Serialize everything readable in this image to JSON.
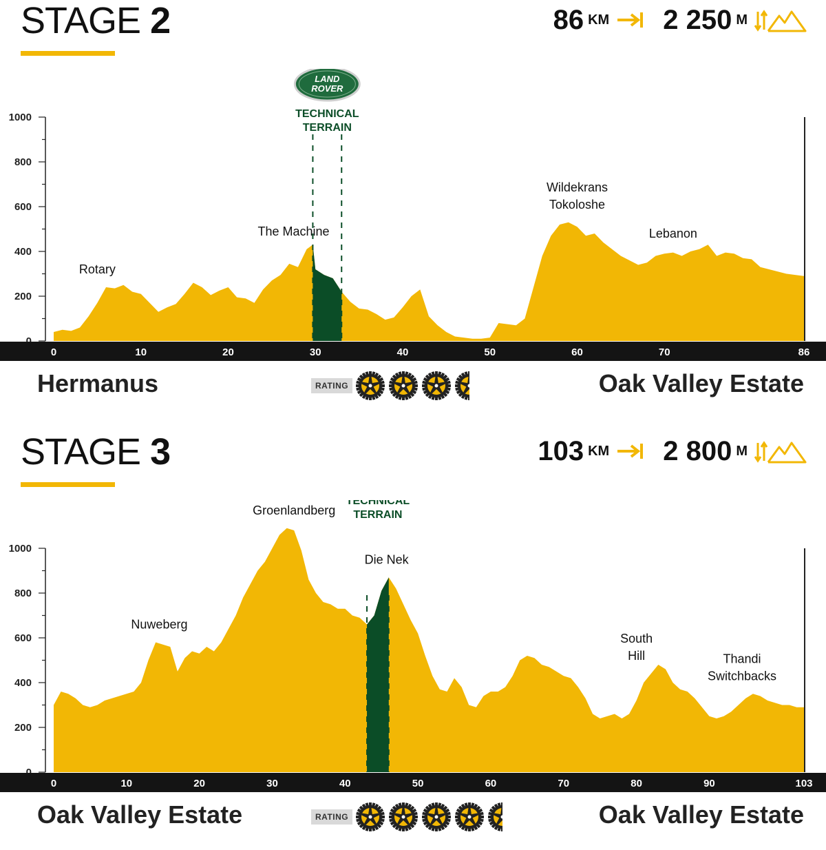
{
  "colors": {
    "accent": "#f2b705",
    "technical": "#0b4d27",
    "axis_bar": "#141414",
    "text": "#111111"
  },
  "icons": {
    "distance": "arrow-to-line-icon",
    "climbing": "mountain-up-down-icon",
    "rating": "gear-wheel-icon",
    "sponsor": "land-rover-logo"
  },
  "stages": [
    {
      "title_word": "STAGE",
      "title_num": "2",
      "distance_value": "86",
      "distance_unit": "KM",
      "climb_value": "2 250",
      "climb_unit": "M",
      "start": "Hermanus",
      "finish": "Oak Valley Estate",
      "rating_label": "RATING",
      "rating_value": 3.5,
      "logo_text": [
        "LAND",
        "ROVER"
      ],
      "technical_label": [
        "TECHNICAL",
        "TERRAIN"
      ]
    },
    {
      "title_word": "STAGE",
      "title_num": "3",
      "distance_value": "103",
      "distance_unit": "KM",
      "climb_value": "2 800",
      "climb_unit": "M",
      "start": "Oak Valley Estate",
      "finish": "Oak Valley Estate",
      "rating_label": "RATING",
      "rating_value": 4.5,
      "logo_text": [
        "LAND",
        "ROVER"
      ],
      "technical_label": [
        "TECHNICAL",
        "TERRAIN"
      ]
    }
  ],
  "chart_data": [
    {
      "type": "area",
      "xlim": [
        0,
        86
      ],
      "ylim": [
        0,
        1000
      ],
      "x_ticks": [
        0,
        10,
        20,
        30,
        40,
        50,
        60,
        70,
        86
      ],
      "y_ticks": [
        0,
        200,
        400,
        600,
        800,
        1000
      ],
      "technical_range": [
        29.7,
        33.0
      ],
      "series": [
        {
          "x": [
            0,
            1,
            2,
            3,
            4,
            5,
            6,
            7,
            8,
            9,
            10,
            11,
            12,
            13,
            14,
            15,
            16,
            17,
            18,
            19,
            20,
            21,
            22,
            23,
            24,
            25,
            26,
            27,
            28,
            29,
            29.7,
            30,
            31,
            32,
            33,
            34,
            35,
            36,
            37,
            38,
            39,
            40,
            41,
            42,
            43,
            44,
            45,
            46,
            47,
            48,
            49,
            50,
            51,
            52,
            53,
            54,
            55,
            56,
            57,
            58,
            59,
            60,
            61,
            62,
            63,
            64,
            65,
            66,
            67,
            68,
            69,
            70,
            71,
            72,
            73,
            74,
            75,
            76,
            77,
            78,
            79,
            80,
            81,
            82,
            83,
            84,
            85,
            86
          ],
          "y": [
            40,
            50,
            45,
            60,
            110,
            170,
            240,
            235,
            250,
            220,
            210,
            170,
            130,
            150,
            165,
            210,
            260,
            240,
            205,
            225,
            240,
            195,
            190,
            170,
            230,
            270,
            295,
            345,
            330,
            410,
            430,
            320,
            295,
            280,
            220,
            175,
            145,
            140,
            120,
            95,
            105,
            150,
            200,
            230,
            110,
            70,
            40,
            20,
            15,
            10,
            10,
            15,
            80,
            75,
            70,
            100,
            240,
            380,
            470,
            520,
            530,
            510,
            470,
            480,
            440,
            410,
            380,
            360,
            340,
            350,
            380,
            390,
            395,
            380,
            400,
            410,
            430,
            380,
            395,
            390,
            370,
            365,
            330,
            320,
            310,
            300,
            295,
            290
          ]
        }
      ],
      "annotations": [
        {
          "label": [
            "Rotary"
          ],
          "x": 5
        },
        {
          "label": [
            "The Machine"
          ],
          "x": 27.5
        },
        {
          "label": [
            "Wildekrans",
            "Tokoloshe"
          ],
          "x": 60
        },
        {
          "label": [
            "Lebanon"
          ],
          "x": 71
        }
      ]
    },
    {
      "type": "area",
      "xlim": [
        0,
        103
      ],
      "ylim": [
        0,
        1000
      ],
      "x_ticks": [
        0,
        10,
        20,
        30,
        40,
        50,
        60,
        70,
        80,
        90,
        103
      ],
      "y_ticks": [
        0,
        200,
        400,
        600,
        800,
        1000
      ],
      "technical_range": [
        43.0,
        46.0
      ],
      "series": [
        {
          "x": [
            0,
            1,
            2,
            3,
            4,
            5,
            6,
            7,
            8,
            9,
            10,
            11,
            12,
            13,
            14,
            15,
            16,
            17,
            18,
            19,
            20,
            21,
            22,
            23,
            24,
            25,
            26,
            27,
            28,
            29,
            30,
            31,
            32,
            33,
            34,
            35,
            36,
            37,
            38,
            39,
            40,
            41,
            42,
            43,
            44,
            45,
            46,
            47,
            48,
            49,
            50,
            51,
            52,
            53,
            54,
            55,
            56,
            57,
            58,
            59,
            60,
            61,
            62,
            63,
            64,
            65,
            66,
            67,
            68,
            69,
            70,
            71,
            72,
            73,
            74,
            75,
            76,
            77,
            78,
            79,
            80,
            81,
            82,
            83,
            84,
            85,
            86,
            87,
            88,
            89,
            90,
            91,
            92,
            93,
            94,
            95,
            96,
            97,
            98,
            99,
            100,
            101,
            102,
            103
          ],
          "y": [
            300,
            360,
            350,
            330,
            300,
            290,
            300,
            320,
            330,
            340,
            350,
            360,
            400,
            500,
            580,
            570,
            560,
            450,
            510,
            540,
            530,
            560,
            540,
            580,
            640,
            700,
            780,
            840,
            900,
            940,
            1000,
            1060,
            1090,
            1080,
            990,
            860,
            800,
            760,
            750,
            730,
            730,
            700,
            690,
            660,
            700,
            810,
            870,
            820,
            750,
            680,
            620,
            520,
            430,
            370,
            360,
            420,
            380,
            300,
            290,
            340,
            360,
            360,
            380,
            430,
            500,
            520,
            510,
            480,
            470,
            450,
            430,
            420,
            380,
            330,
            260,
            240,
            250,
            260,
            240,
            260,
            320,
            400,
            440,
            480,
            460,
            400,
            370,
            360,
            330,
            290,
            250,
            240,
            250,
            270,
            300,
            330,
            350,
            340,
            320,
            310,
            300,
            300,
            290,
            290
          ]
        }
      ],
      "annotations": [
        {
          "label": [
            "Nuweberg"
          ],
          "x": 14.5
        },
        {
          "label": [
            "Groenlandberg"
          ],
          "x": 33
        },
        {
          "label": [
            "Die Nek"
          ],
          "x": 45.7
        },
        {
          "label": [
            "South",
            "Hill"
          ],
          "x": 80
        },
        {
          "label": [
            "Thandi",
            "Switchbacks"
          ],
          "x": 94.5
        }
      ]
    }
  ]
}
